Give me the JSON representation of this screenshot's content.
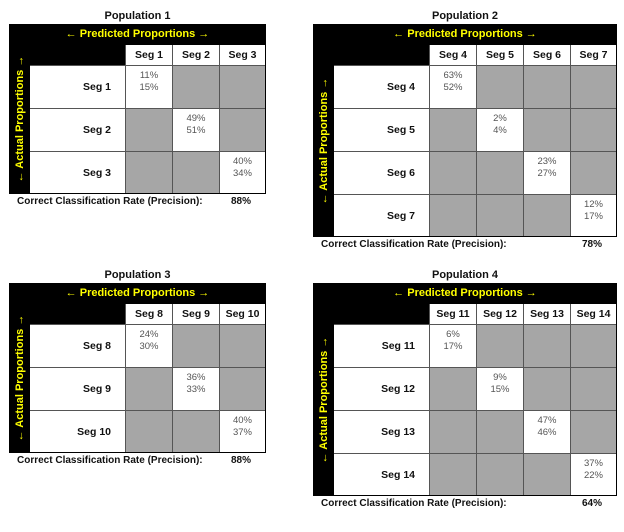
{
  "colors": {
    "band": "#000000",
    "band_text": "#ffff00",
    "off_diagonal": "#a6a6a6",
    "diagonal": "#ffffff"
  },
  "chart_data": [
    {
      "type": "table",
      "title": "Population 1",
      "column_axis_label": "← Predicted Proportions →",
      "row_axis_label": "← Actual Proportions →",
      "segments": [
        "Seg 1",
        "Seg 2",
        "Seg 3"
      ],
      "diagonal": [
        [
          "11%",
          "15%"
        ],
        [
          "49%",
          "51%"
        ],
        [
          "40%",
          "34%"
        ]
      ],
      "footer_label": "Correct Classification Rate (Precision):",
      "footer_value": "88%"
    },
    {
      "type": "table",
      "title": "Population 2",
      "column_axis_label": "← Predicted Proportions →",
      "row_axis_label": "← Actual Proportions →",
      "segments": [
        "Seg 4",
        "Seg 5",
        "Seg 6",
        "Seg 7"
      ],
      "diagonal": [
        [
          "63%",
          "52%"
        ],
        [
          "2%",
          "4%"
        ],
        [
          "23%",
          "27%"
        ],
        [
          "12%",
          "17%"
        ]
      ],
      "footer_label": "Correct Classification Rate (Precision):",
      "footer_value": "78%"
    },
    {
      "type": "table",
      "title": "Population 3",
      "column_axis_label": "← Predicted Proportions →",
      "row_axis_label": "← Actual Proportions →",
      "segments": [
        "Seg 8",
        "Seg 9",
        "Seg 10"
      ],
      "diagonal": [
        [
          "24%",
          "30%"
        ],
        [
          "36%",
          "33%"
        ],
        [
          "40%",
          "37%"
        ]
      ],
      "footer_label": "Correct Classification Rate (Precision):",
      "footer_value": "88%"
    },
    {
      "type": "table",
      "title": "Population 4",
      "column_axis_label": "← Predicted Proportions →",
      "row_axis_label": "← Actual Proportions →",
      "segments": [
        "Seg 11",
        "Seg 12",
        "Seg 13",
        "Seg 14"
      ],
      "diagonal": [
        [
          "6%",
          "17%"
        ],
        [
          "9%",
          "15%"
        ],
        [
          "47%",
          "46%"
        ],
        [
          "37%",
          "22%"
        ]
      ],
      "footer_label": "Correct Classification Rate (Precision):",
      "footer_value": "64%"
    }
  ]
}
